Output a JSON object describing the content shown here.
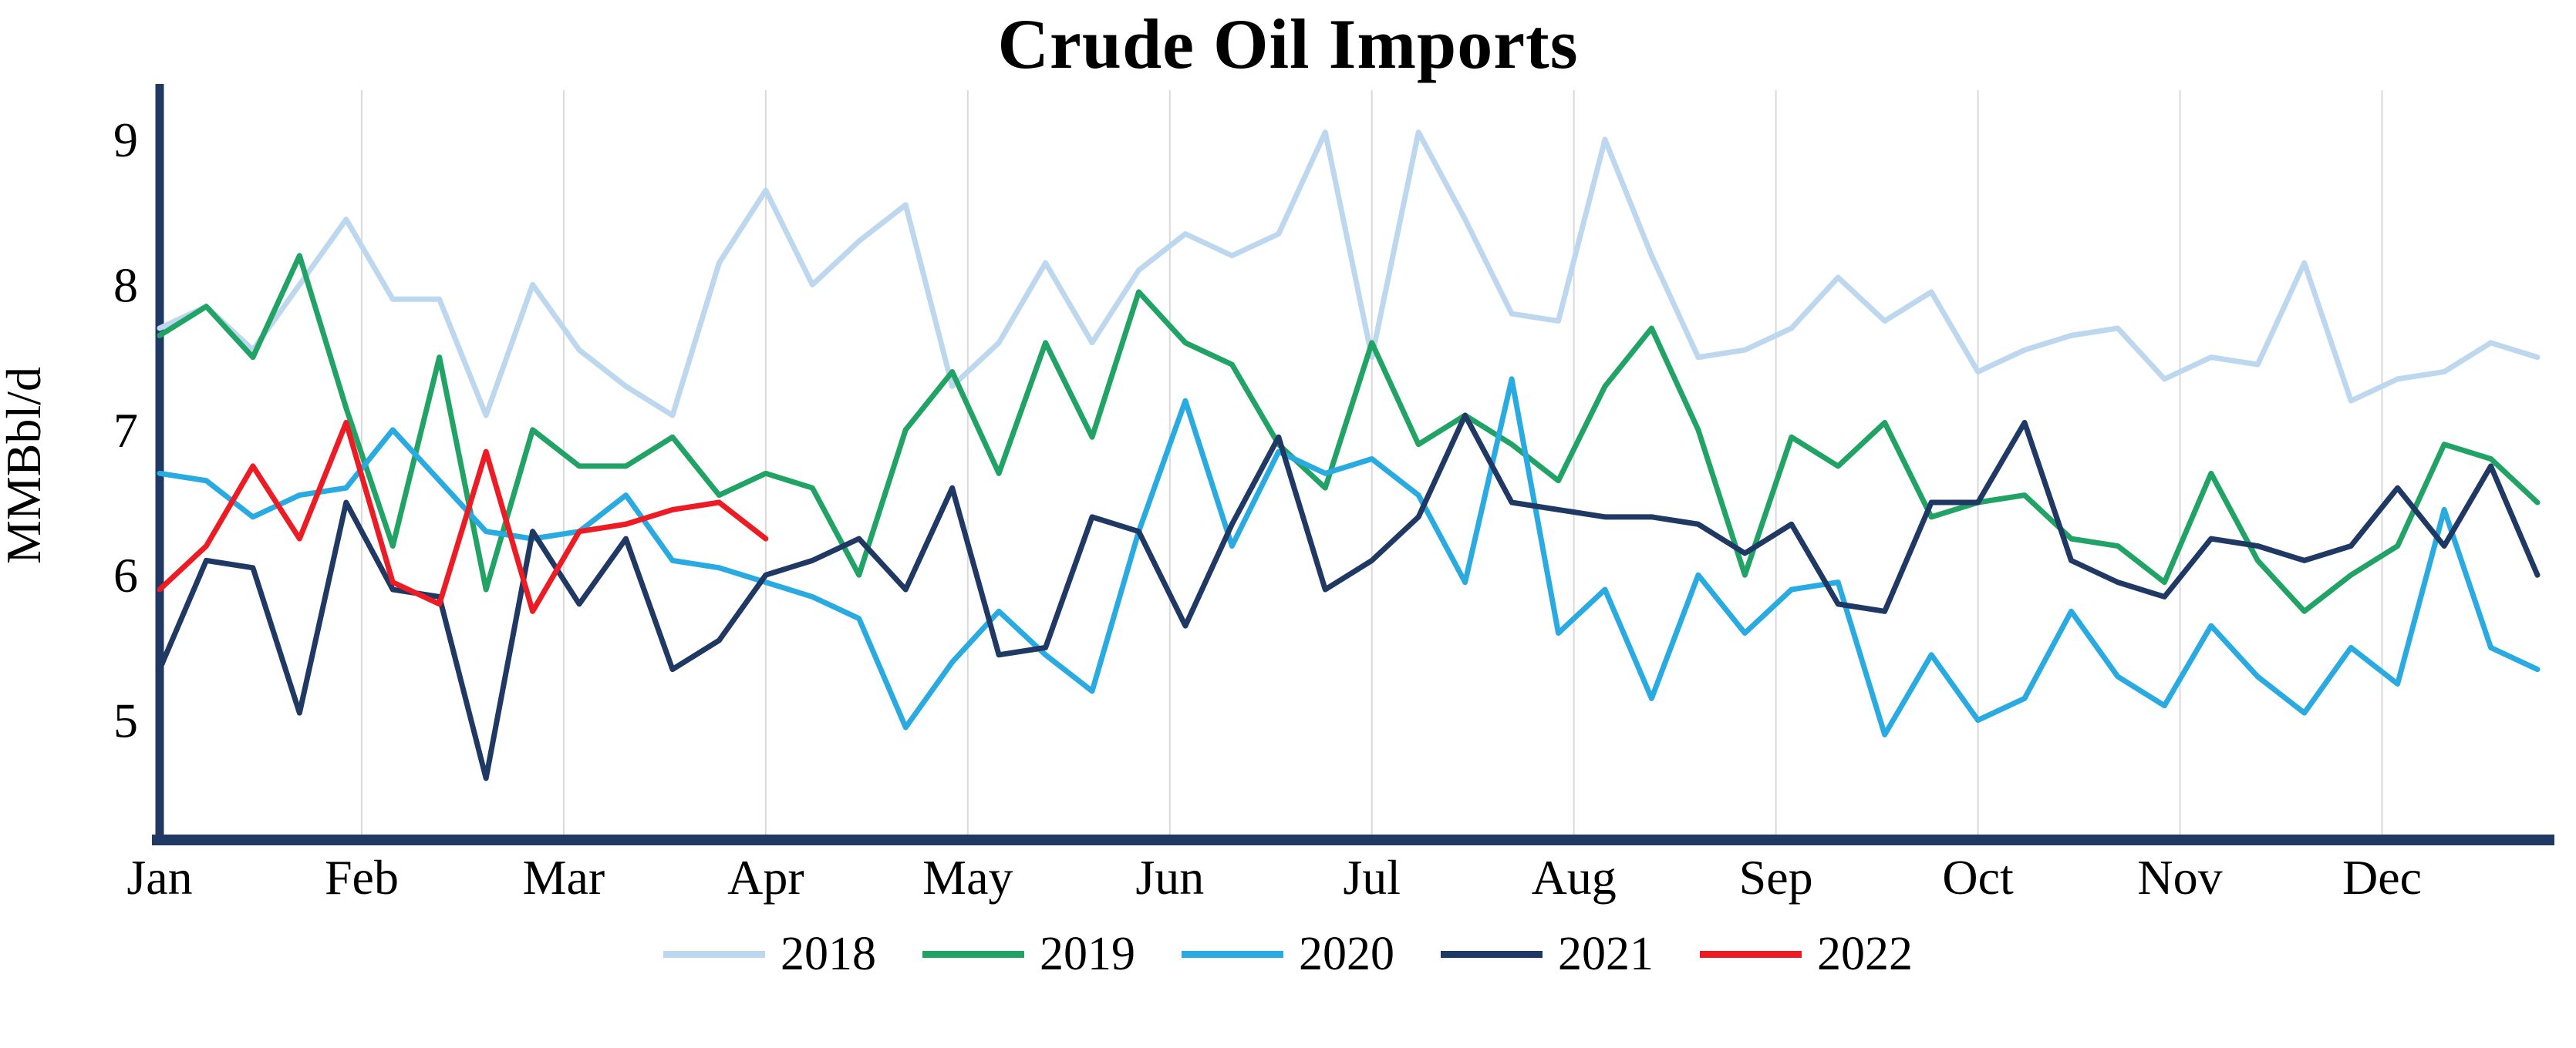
{
  "chart_data": {
    "type": "line",
    "title": "Crude Oil Imports",
    "ylabel": "MMBbl/d",
    "x_unit": "week of year",
    "points_per_year": 52,
    "x_tick_labels": [
      "Jan",
      "Feb",
      "Mar",
      "Apr",
      "May",
      "Jun",
      "Jul",
      "Aug",
      "Sep",
      "Oct",
      "Nov",
      "Dec"
    ],
    "y_ticks": [
      9,
      8,
      7,
      6,
      5
    ],
    "ylim": [
      4.175,
      9.34
    ],
    "grid": "vertical month gridlines only",
    "legend_position": "bottom center",
    "axis_color": "#1f3864",
    "grid_color": "#d9d9d9",
    "series": [
      {
        "name": "2018",
        "color": "#bdd7ee",
        "values": [
          7.7,
          7.85,
          7.55,
          8.0,
          8.45,
          7.9,
          7.9,
          7.1,
          8.0,
          7.55,
          7.3,
          7.1,
          8.15,
          8.65,
          8.0,
          8.3,
          8.55,
          7.3,
          7.6,
          8.15,
          7.6,
          8.1,
          8.35,
          8.2,
          8.35,
          9.05,
          7.5,
          9.05,
          8.45,
          7.8,
          7.75,
          9.0,
          8.2,
          7.5,
          7.55,
          7.7,
          8.05,
          7.75,
          7.95,
          7.4,
          7.55,
          7.65,
          7.7,
          7.35,
          7.5,
          7.45,
          8.15,
          7.2,
          7.35,
          7.4,
          7.6,
          7.5
        ]
      },
      {
        "name": "2019",
        "color": "#21a366",
        "values": [
          7.65,
          7.85,
          7.5,
          8.2,
          7.15,
          6.2,
          7.5,
          5.9,
          7.0,
          6.75,
          6.75,
          6.95,
          6.55,
          6.7,
          6.6,
          6.0,
          7.0,
          7.4,
          6.7,
          7.6,
          6.95,
          7.95,
          7.6,
          7.45,
          6.9,
          6.6,
          7.6,
          6.9,
          7.1,
          6.9,
          6.65,
          7.3,
          7.7,
          7.0,
          6.0,
          6.95,
          6.75,
          7.05,
          6.4,
          6.5,
          6.55,
          6.25,
          6.2,
          5.95,
          6.7,
          6.1,
          5.75,
          6.0,
          6.2,
          6.9,
          6.8,
          6.5
        ]
      },
      {
        "name": "2020",
        "color": "#29abe2",
        "values": [
          6.7,
          6.65,
          6.4,
          6.55,
          6.6,
          7.0,
          6.65,
          6.3,
          6.25,
          6.3,
          6.55,
          6.1,
          6.05,
          5.95,
          5.85,
          5.7,
          4.95,
          5.4,
          5.75,
          5.45,
          5.2,
          6.3,
          7.2,
          6.2,
          6.85,
          6.7,
          6.8,
          6.55,
          5.95,
          7.35,
          5.6,
          5.9,
          5.15,
          6.0,
          5.6,
          5.9,
          5.95,
          4.9,
          5.45,
          5.0,
          5.15,
          5.75,
          5.3,
          5.1,
          5.65,
          5.3,
          5.05,
          5.5,
          5.25,
          6.45,
          5.5,
          5.35
        ]
      },
      {
        "name": "2021",
        "color": "#1f3864",
        "values": [
          5.35,
          6.1,
          6.05,
          5.05,
          6.5,
          5.9,
          5.85,
          4.6,
          6.3,
          5.8,
          6.25,
          5.35,
          5.55,
          6.0,
          6.1,
          6.25,
          5.9,
          6.6,
          5.45,
          5.5,
          6.4,
          6.3,
          5.65,
          6.35,
          6.95,
          5.9,
          6.1,
          6.4,
          7.1,
          6.5,
          6.45,
          6.4,
          6.4,
          6.35,
          6.15,
          6.35,
          5.8,
          5.75,
          6.5,
          6.5,
          7.05,
          6.1,
          5.95,
          5.85,
          6.25,
          6.2,
          6.1,
          6.2,
          6.6,
          6.2,
          6.75,
          6.0
        ]
      },
      {
        "name": "2022",
        "color": "#ed1c24",
        "values": [
          5.9,
          6.2,
          6.75,
          6.25,
          7.05,
          5.95,
          5.8,
          6.85,
          5.75,
          6.3,
          6.35,
          6.45,
          6.5,
          6.25
        ]
      }
    ]
  }
}
